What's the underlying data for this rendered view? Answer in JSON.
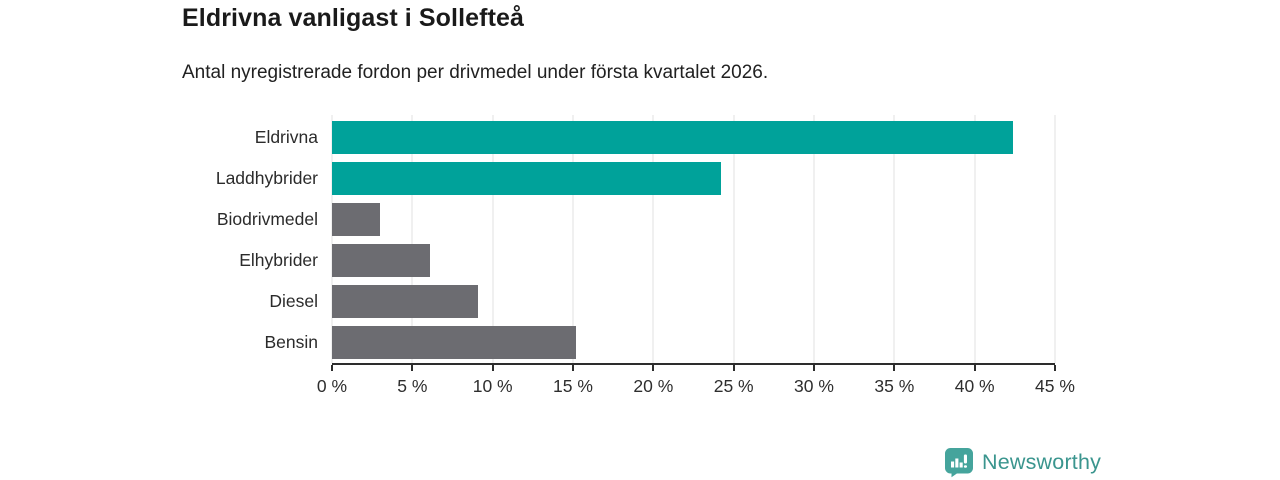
{
  "header": {
    "title": "Eldrivna vanligast i Sollefteå",
    "subtitle": "Antal nyregistrerade fordon per drivmedel under första kvartalet 2026."
  },
  "chart_data": {
    "type": "bar",
    "orientation": "horizontal",
    "title": "Eldrivna vanligast i Sollefteå",
    "subtitle": "Antal nyregistrerade fordon per drivmedel under första kvartalet 2026.",
    "categories": [
      "Eldrivna",
      "Laddhybrider",
      "Biodrivmedel",
      "Elhybrider",
      "Diesel",
      "Bensin"
    ],
    "values": [
      42.4,
      24.2,
      3.0,
      6.1,
      9.1,
      15.2
    ],
    "unit": "%",
    "bar_color_keys": [
      "highlight",
      "highlight",
      "neutral",
      "neutral",
      "neutral",
      "neutral"
    ],
    "colors": {
      "highlight": "#00a29a",
      "neutral": "#6c6c71"
    },
    "xlabel": "",
    "ylabel": "",
    "xlim": [
      0,
      45
    ],
    "x_ticks": [
      0,
      5,
      10,
      15,
      20,
      25,
      30,
      35,
      40,
      45
    ],
    "x_tick_labels": [
      "0 %",
      "5 %",
      "10 %",
      "15 %",
      "20 %",
      "25 %",
      "30 %",
      "35 %",
      "40 %",
      "45 %"
    ],
    "grid": true,
    "legend": false
  },
  "footer": {
    "brand": "Newsworthy",
    "logo_icon": "bar-chart-speech-bubble-icon",
    "brand_text_color": "#3a958e",
    "brand_icon_color": "#45a49c"
  }
}
